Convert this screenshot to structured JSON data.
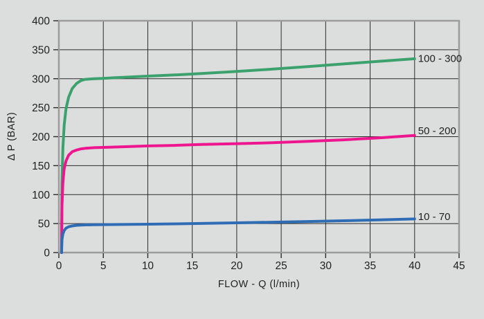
{
  "colors": {
    "background": "#dcdddd",
    "grid": "#2a2a2a",
    "border": "#9b9b9b",
    "text": "#1f1f1f",
    "series_green": "#3ba26e",
    "series_pink": "#ed168e",
    "series_blue": "#2e6cb4"
  },
  "chart_data": {
    "type": "line",
    "title": "",
    "xlabel": "FLOW - Q (l/min)",
    "ylabel": "Δ  P (BAR)",
    "xlim": [
      0,
      45
    ],
    "ylim": [
      0,
      400
    ],
    "x_ticks": [
      0,
      5,
      10,
      15,
      20,
      25,
      30,
      35,
      40,
      45
    ],
    "y_ticks": [
      0,
      50,
      100,
      150,
      200,
      250,
      300,
      350,
      400
    ],
    "grid": true,
    "legend_position": "inline-right-of-curves",
    "series": [
      {
        "name": "100 - 300",
        "color": "#3ba26e",
        "label_y_bar": 335,
        "points": [
          [
            0.3,
            0
          ],
          [
            0.35,
            120
          ],
          [
            0.45,
            180
          ],
          [
            0.6,
            220
          ],
          [
            0.8,
            248
          ],
          [
            1.1,
            268
          ],
          [
            1.5,
            283
          ],
          [
            2,
            292
          ],
          [
            2.5,
            297
          ],
          [
            3,
            299
          ],
          [
            4,
            300
          ],
          [
            5,
            300.5
          ],
          [
            6,
            301.5
          ],
          [
            8,
            303
          ],
          [
            10,
            304.5
          ],
          [
            13,
            306.5
          ],
          [
            16,
            309
          ],
          [
            20,
            312.5
          ],
          [
            24,
            316.5
          ],
          [
            28,
            321
          ],
          [
            32,
            325.5
          ],
          [
            36,
            330
          ],
          [
            40,
            334.5
          ]
        ]
      },
      {
        "name": "50 - 200",
        "color": "#ed168e",
        "label_y_bar": 210,
        "points": [
          [
            0.3,
            0
          ],
          [
            0.35,
            80
          ],
          [
            0.45,
            120
          ],
          [
            0.6,
            145
          ],
          [
            0.8,
            158
          ],
          [
            1.1,
            168
          ],
          [
            1.5,
            174
          ],
          [
            2,
            177
          ],
          [
            2.5,
            179
          ],
          [
            3,
            180
          ],
          [
            4,
            181
          ],
          [
            5,
            181.5
          ],
          [
            6,
            182
          ],
          [
            8,
            183
          ],
          [
            10,
            184
          ],
          [
            13,
            185
          ],
          [
            16,
            186.5
          ],
          [
            20,
            188
          ],
          [
            24,
            189.5
          ],
          [
            28,
            192
          ],
          [
            32,
            194.5
          ],
          [
            36,
            198
          ],
          [
            40,
            202
          ]
        ]
      },
      {
        "name": "10 - 70",
        "color": "#2e6cb4",
        "label_y_bar": 62,
        "points": [
          [
            0.3,
            0
          ],
          [
            0.35,
            22
          ],
          [
            0.45,
            32
          ],
          [
            0.6,
            38
          ],
          [
            0.8,
            42
          ],
          [
            1.1,
            44.5
          ],
          [
            1.5,
            46
          ],
          [
            2,
            47
          ],
          [
            2.5,
            47.5
          ],
          [
            3,
            47.8
          ],
          [
            4,
            48
          ],
          [
            5,
            48.2
          ],
          [
            6,
            48.4
          ],
          [
            8,
            48.7
          ],
          [
            10,
            49
          ],
          [
            13,
            49.6
          ],
          [
            16,
            50.3
          ],
          [
            20,
            51.3
          ],
          [
            24,
            52.4
          ],
          [
            28,
            53.6
          ],
          [
            32,
            54.9
          ],
          [
            36,
            56.3
          ],
          [
            40,
            58
          ]
        ]
      }
    ]
  }
}
